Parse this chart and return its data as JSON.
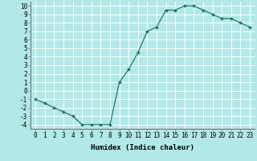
{
  "x": [
    0,
    1,
    2,
    3,
    4,
    5,
    6,
    7,
    8,
    9,
    10,
    11,
    12,
    13,
    14,
    15,
    16,
    17,
    18,
    19,
    20,
    21,
    22,
    23
  ],
  "y": [
    -1.0,
    -1.5,
    -2.0,
    -2.5,
    -3.0,
    -4.0,
    -4.0,
    -4.0,
    -4.0,
    1.0,
    2.5,
    4.5,
    7.0,
    7.5,
    9.5,
    9.5,
    10.0,
    10.0,
    9.5,
    9.0,
    8.5,
    8.5,
    8.0,
    7.5
  ],
  "xlabel": "Humidex (Indice chaleur)",
  "ylim": [
    -4.5,
    10.5
  ],
  "xlim": [
    -0.5,
    23.5
  ],
  "yticks": [
    -4,
    -3,
    -2,
    -1,
    0,
    1,
    2,
    3,
    4,
    5,
    6,
    7,
    8,
    9,
    10
  ],
  "xticks": [
    0,
    1,
    2,
    3,
    4,
    5,
    6,
    7,
    8,
    9,
    10,
    11,
    12,
    13,
    14,
    15,
    16,
    17,
    18,
    19,
    20,
    21,
    22,
    23
  ],
  "line_color": "#1a6b5a",
  "marker": "+",
  "bg_color": "#b2e8e8",
  "grid_color": "#ffffff",
  "label_fontsize": 6.5,
  "tick_fontsize": 5.5
}
